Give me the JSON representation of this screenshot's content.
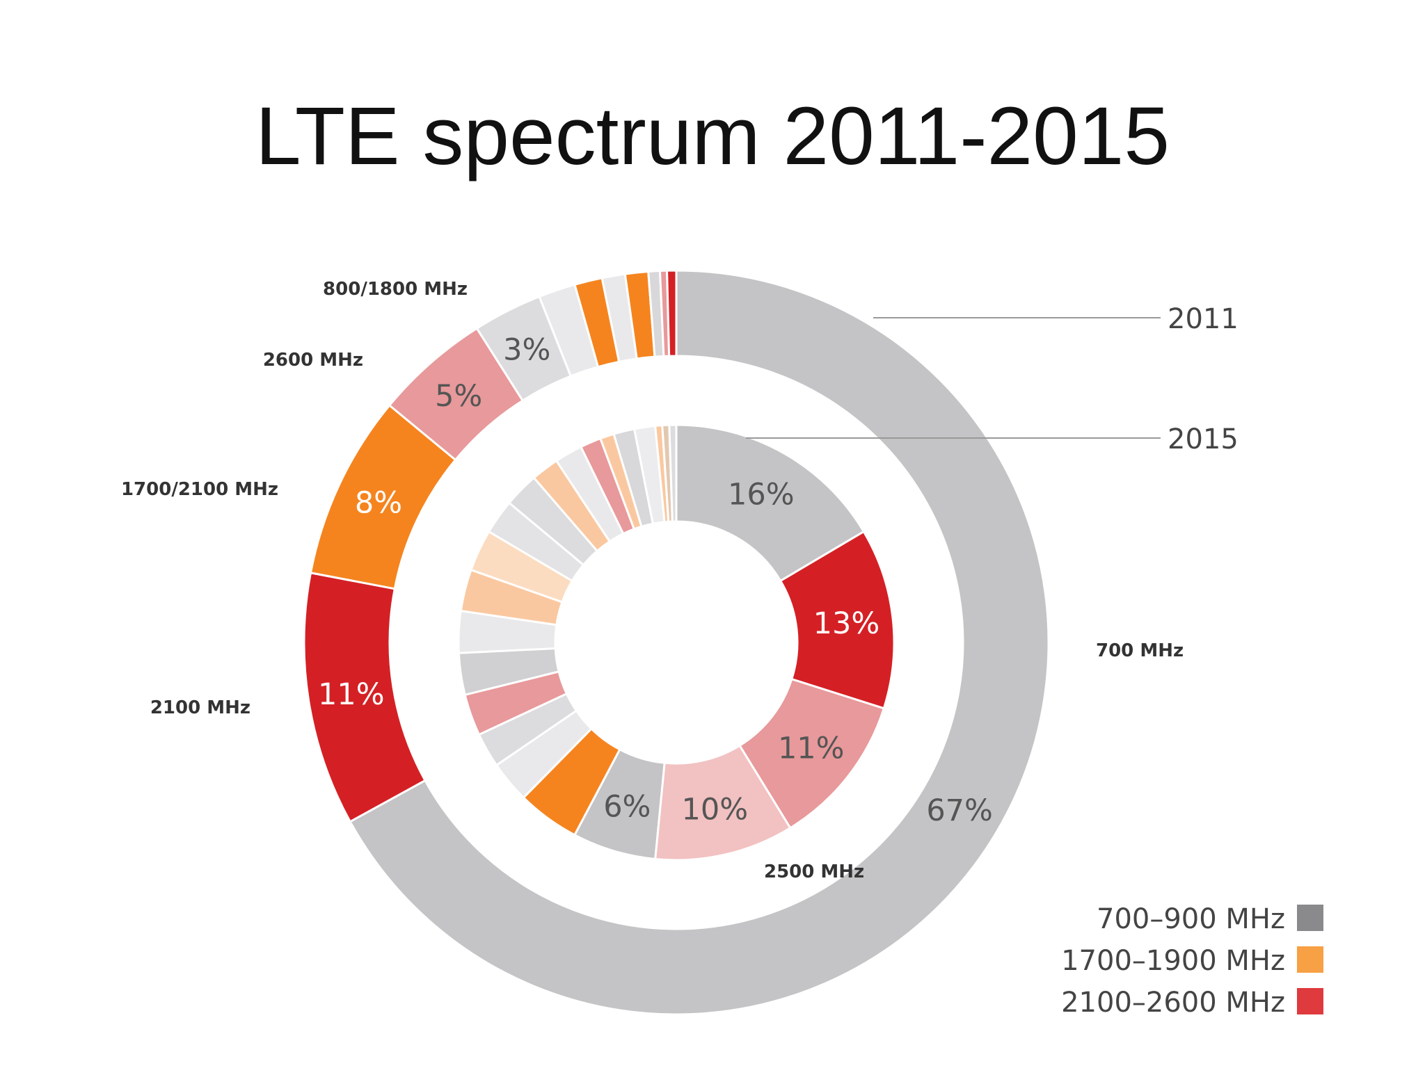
{
  "title": "LTE spectrum 2011-2015",
  "chart_data": {
    "type": "pie",
    "title": "LTE spectrum 2011-2015",
    "series": [
      {
        "name": "2011",
        "slices": [
          {
            "label": "700 MHz",
            "value_label": "67%",
            "value": 67,
            "color": "#c4c4c6"
          },
          {
            "label": "2100 MHz",
            "value_label": "11%",
            "value": 11,
            "color": "#d42025"
          },
          {
            "label": "1700/2100 MHz",
            "value_label": "8%",
            "value": 8,
            "color": "#f5841f"
          },
          {
            "label": "2600 MHz",
            "value_label": "5%",
            "value": 5,
            "color": "#e8999b"
          },
          {
            "label": "800/1800 MHz",
            "value_label": "3%",
            "value": 3,
            "color": "#dcdcde"
          },
          {
            "value": 1.6,
            "color": "#e9e9eb"
          },
          {
            "value": 1.2,
            "color": "#f5841f"
          },
          {
            "value": 1.0,
            "color": "#e9e9eb"
          },
          {
            "value": 1.0,
            "color": "#f5841f"
          },
          {
            "value": 0.5,
            "color": "#d8d8da"
          },
          {
            "value": 0.3,
            "color": "#e8999b"
          },
          {
            "value": 0.4,
            "color": "#d42025"
          }
        ]
      },
      {
        "name": "2015",
        "slices": [
          {
            "label": "",
            "value_label": "16%",
            "value": 16,
            "color": "#c4c4c6"
          },
          {
            "label": "",
            "value_label": "13%",
            "value": 13,
            "color": "#d42025"
          },
          {
            "label": "",
            "value_label": "11%",
            "value": 11,
            "color": "#e8999b"
          },
          {
            "label": "2500 MHz",
            "value_label": "10%",
            "value": 10,
            "color": "#f2c1c1"
          },
          {
            "label": "",
            "value_label": "6%",
            "value": 6,
            "color": "#c4c4c6"
          },
          {
            "value": 4.5,
            "color": "#f5841f"
          },
          {
            "value": 3,
            "color": "#e9e9eb"
          },
          {
            "value": 2.5,
            "color": "#dcdcde"
          },
          {
            "value": 3,
            "color": "#e8999b"
          },
          {
            "value": 3,
            "color": "#d0d0d2"
          },
          {
            "value": 3,
            "color": "#e9e9eb"
          },
          {
            "value": 3,
            "color": "#fac8a0"
          },
          {
            "value": 3,
            "color": "#fcdcc0"
          },
          {
            "value": 2.5,
            "color": "#e3e3e5"
          },
          {
            "value": 2.5,
            "color": "#dcdcde"
          },
          {
            "value": 2,
            "color": "#fac8a0"
          },
          {
            "value": 2,
            "color": "#e9e9eb"
          },
          {
            "value": 1.5,
            "color": "#e8999b"
          },
          {
            "value": 1,
            "color": "#fac8a0"
          },
          {
            "value": 1.5,
            "color": "#d8d8da"
          },
          {
            "value": 1.5,
            "color": "#ececee"
          },
          {
            "value": 0.5,
            "color": "#fac8a0"
          },
          {
            "value": 0.5,
            "color": "#e3c8b0"
          },
          {
            "value": 0.5,
            "color": "#dcdcde"
          }
        ]
      }
    ],
    "legend": {
      "position": "bottom-right",
      "entries": [
        {
          "label": "700–900 MHz",
          "color": "#8a8a8c"
        },
        {
          "label": "1700–1900 MHz",
          "color": "#f7a044"
        },
        {
          "label": "2100–2600 MHz",
          "color": "#df3a3e"
        }
      ]
    }
  }
}
